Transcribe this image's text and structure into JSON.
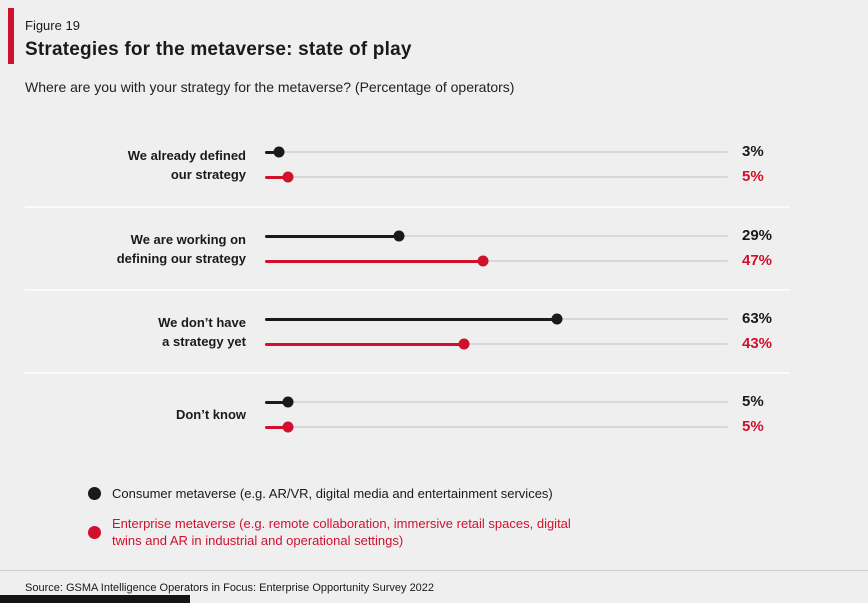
{
  "figure_label": "Figure 19",
  "title": "Strategies for the metaverse: state of play",
  "subtitle": "Where are you with your strategy for the metaverse? (Percentage of operators)",
  "source": "Source: GSMA Intelligence Operators in Focus: Enterprise Opportunity Survey 2022",
  "colors": {
    "background": "#EFEFEF",
    "black": "#1A1A1A",
    "red": "#D0112E",
    "track": "#D8D8D8",
    "separator": "#FAFAFA"
  },
  "legend": [
    {
      "series": "consumer",
      "color": "#1A1A1A",
      "label": "Consumer metaverse (e.g. AR/VR, digital media and entertainment services)"
    },
    {
      "series": "enterprise",
      "color": "#D0112E",
      "label": "Enterprise metaverse (e.g. remote collaboration, immersive retail spaces, digital twins and AR in industrial and operational settings)"
    }
  ],
  "chart_data": {
    "type": "bar",
    "subtype": "horizontal-lollipop",
    "title": "Strategies for the metaverse: state of play",
    "xlabel": "Percentage of operators",
    "ylabel": "",
    "xlim": [
      0,
      100
    ],
    "grid": false,
    "legend_position": "bottom",
    "value_suffix": "%",
    "categories": [
      "We already defined our strategy",
      "We are working on defining our strategy",
      "We don’t have a strategy yet",
      "Don’t know"
    ],
    "series": [
      {
        "name": "Consumer metaverse (e.g. AR/VR, digital media and entertainment services)",
        "color": "#1A1A1A",
        "values": [
          3,
          29,
          63,
          5
        ]
      },
      {
        "name": "Enterprise metaverse (e.g. remote collaboration, immersive retail spaces, digital twins and AR in industrial and operational settings)",
        "color": "#D0112E",
        "values": [
          5,
          47,
          43,
          5
        ]
      }
    ],
    "rows": [
      {
        "label_lines": [
          "We already defined",
          "our strategy"
        ],
        "consumer": 3,
        "enterprise": 5
      },
      {
        "label_lines": [
          "We are working on",
          "defining our strategy"
        ],
        "consumer": 29,
        "enterprise": 47
      },
      {
        "label_lines": [
          "We don’t have",
          "a strategy yet"
        ],
        "consumer": 63,
        "enterprise": 43
      },
      {
        "label_lines": [
          "Don’t know"
        ],
        "consumer": 5,
        "enterprise": 5
      }
    ]
  }
}
